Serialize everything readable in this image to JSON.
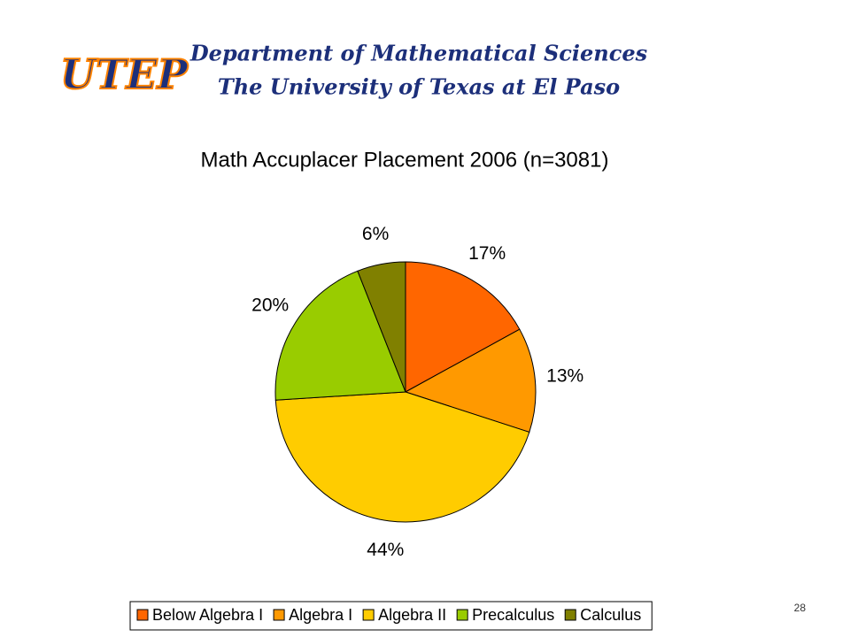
{
  "header": {
    "logo": "UTEP",
    "title": "Department of Mathematical Sciences",
    "subtitle": "The University of Texas at El Paso"
  },
  "page_number": 28,
  "chart_data": {
    "type": "pie",
    "title": "Math Accuplacer Placement 2006 (n=3081)",
    "categories": [
      "Below Algebra I",
      "Algebra I",
      "Algebra II",
      "Precalculus",
      "Calculus"
    ],
    "values": [
      17,
      13,
      44,
      20,
      6
    ],
    "value_labels": [
      "17%",
      "13%",
      "44%",
      "20%",
      "6%"
    ],
    "colors": [
      "#ff6600",
      "#ff9900",
      "#ffcc00",
      "#99cc00",
      "#808000"
    ],
    "legend": "bottom"
  }
}
